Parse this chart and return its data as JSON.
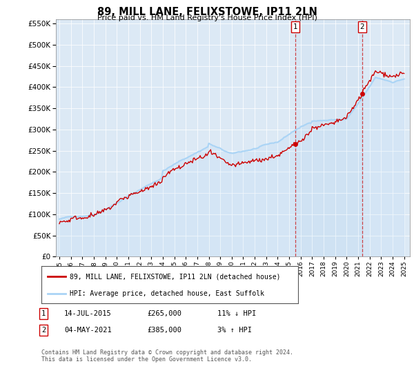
{
  "title": "89, MILL LANE, FELIXSTOWE, IP11 2LN",
  "subtitle": "Price paid vs. HM Land Registry's House Price Index (HPI)",
  "legend_line1": "89, MILL LANE, FELIXSTOWE, IP11 2LN (detached house)",
  "legend_line2": "HPI: Average price, detached house, East Suffolk",
  "transaction1_date": "14-JUL-2015",
  "transaction1_price": "£265,000",
  "transaction1_hpi": "11% ↓ HPI",
  "transaction2_date": "04-MAY-2021",
  "transaction2_price": "£385,000",
  "transaction2_hpi": "3% ↑ HPI",
  "footer": "Contains HM Land Registry data © Crown copyright and database right 2024.\nThis data is licensed under the Open Government Licence v3.0.",
  "hpi_color": "#aad4f5",
  "price_color": "#cc0000",
  "vline_color": "#cc0000",
  "background_color": "#dce9f5",
  "grid_color": "#ffffff",
  "ylim_min": 0,
  "ylim_max": 560000,
  "transaction1_year": 2015.54,
  "transaction1_value": 265000,
  "transaction2_year": 2021.34,
  "transaction2_value": 385000,
  "xstart": 1995,
  "xend": 2025
}
